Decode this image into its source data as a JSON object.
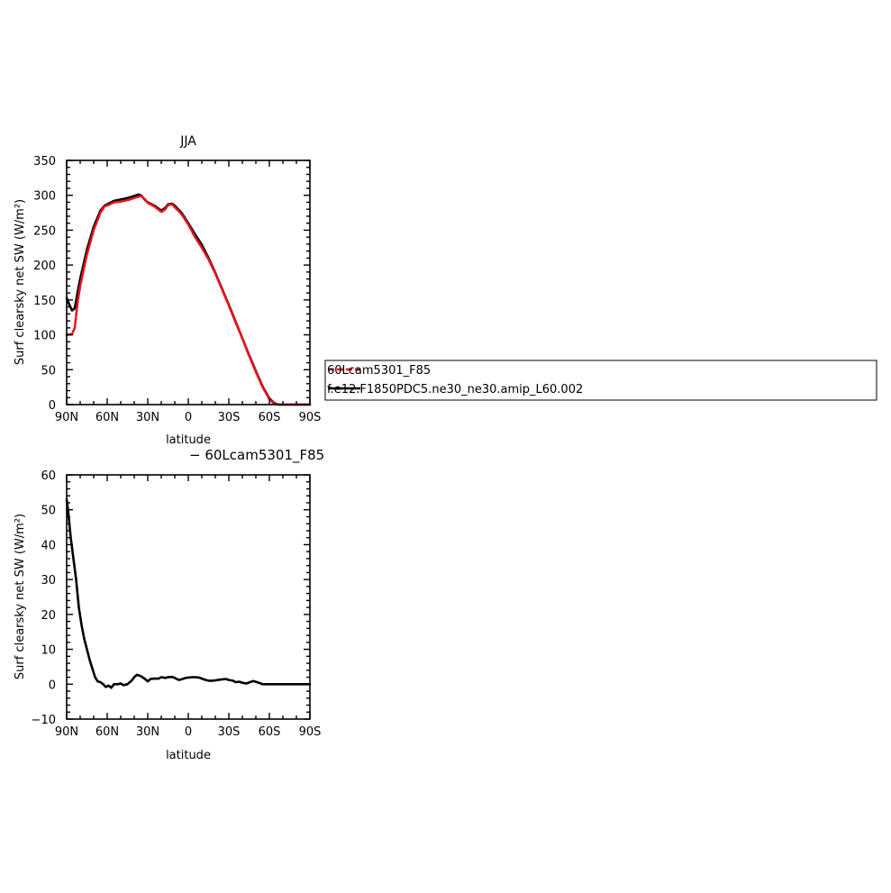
{
  "chart_data": [
    {
      "type": "line",
      "title": "JJA",
      "xlabel": "latitude",
      "ylabel": "Surf clearsky net SW (W/m²)",
      "xlim": [
        90,
        -90
      ],
      "ylim": [
        0,
        350
      ],
      "xticks": [
        90,
        60,
        30,
        0,
        -30,
        -60,
        -90
      ],
      "xtick_labels": [
        "90N",
        "60N",
        "30N",
        "0",
        "30S",
        "60S",
        "90S"
      ],
      "yticks": [
        0,
        50,
        100,
        150,
        200,
        250,
        300,
        350
      ],
      "ytick_labels": [
        "0",
        "50",
        "100",
        "150",
        "200",
        "250",
        "300",
        "350"
      ],
      "grid": false,
      "series": [
        {
          "name": "60Lcam5301_F85",
          "color": "#e8141b",
          "style": "dashed",
          "x": [
            90,
            86,
            84,
            82,
            80,
            75,
            70,
            65,
            62,
            58,
            55,
            50,
            45,
            40,
            37,
            35,
            32,
            30,
            25,
            20,
            17,
            15,
            12,
            10,
            5,
            0,
            -5,
            -10,
            -15,
            -20,
            -25,
            -30,
            -35,
            -40,
            -45,
            -50,
            -55,
            -60,
            -63,
            -65,
            -67,
            -70,
            -75,
            -80,
            -85,
            -90
          ],
          "y": [
            100,
            101,
            110,
            145,
            170,
            215,
            250,
            275,
            284,
            287,
            290,
            291,
            293,
            296,
            298,
            299,
            294,
            289,
            284,
            276,
            280,
            286,
            287,
            283,
            273,
            258,
            240,
            225,
            208,
            188,
            165,
            142,
            118,
            95,
            70,
            47,
            25,
            8,
            2,
            0.5,
            0,
            0,
            0,
            0,
            0,
            0
          ]
        },
        {
          "name": "f.e12.F1850PDC5.ne30_ne30.amip_L60.002",
          "color": "#000000",
          "style": "solid",
          "x": [
            90,
            88,
            86,
            84,
            82,
            80,
            75,
            70,
            65,
            62,
            58,
            55,
            50,
            45,
            40,
            37,
            35,
            32,
            30,
            25,
            20,
            17,
            15,
            12,
            10,
            5,
            0,
            -5,
            -10,
            -15,
            -20,
            -25,
            -30,
            -35,
            -40,
            -45,
            -50,
            -55,
            -60,
            -63,
            -65,
            -67,
            -70,
            -75,
            -80,
            -85,
            -90
          ],
          "y": [
            153,
            143,
            135,
            138,
            160,
            180,
            222,
            255,
            278,
            285,
            289,
            292,
            294,
            296,
            299,
            301,
            300,
            293,
            290,
            285,
            278,
            282,
            287,
            288,
            285,
            275,
            260,
            244,
            229,
            210,
            189,
            166,
            143,
            119,
            95,
            71,
            48,
            26,
            9,
            3,
            1,
            0,
            0,
            0,
            0,
            0,
            0
          ]
        }
      ],
      "legend": "right, framed"
    },
    {
      "type": "line",
      "title": "− 60Lcam5301_F85",
      "xlabel": "latitude",
      "ylabel": "Surf clearsky net SW (W/m²)",
      "xlim": [
        90,
        -90
      ],
      "ylim": [
        -10,
        60
      ],
      "xticks": [
        90,
        60,
        30,
        0,
        -30,
        -60,
        -90
      ],
      "xtick_labels": [
        "90N",
        "60N",
        "30N",
        "0",
        "30S",
        "60S",
        "90S"
      ],
      "yticks": [
        -10,
        0,
        10,
        20,
        30,
        40,
        50,
        60
      ],
      "ytick_labels": [
        "−10",
        "0",
        "10",
        "20",
        "30",
        "40",
        "50",
        "60"
      ],
      "grid": false,
      "series": [
        {
          "color": "#000000",
          "style": "solid",
          "x": [
            90,
            89,
            87,
            85,
            83,
            81,
            79,
            77,
            75,
            73,
            71,
            69,
            67,
            65,
            63,
            61,
            59,
            57,
            55,
            52,
            50,
            48,
            45,
            42,
            40,
            38,
            35,
            32,
            30,
            28,
            25,
            22,
            20,
            17,
            15,
            12,
            10,
            7,
            5,
            2,
            0,
            -3,
            -5,
            -8,
            -10,
            -13,
            -15,
            -18,
            -20,
            -23,
            -25,
            -28,
            -30,
            -33,
            -35,
            -38,
            -40,
            -43,
            -45,
            -48,
            -50,
            -53,
            -55,
            -58,
            -60,
            -62,
            -64,
            -66,
            -70,
            -75,
            -80,
            -85,
            -90
          ],
          "y": [
            53,
            50,
            42,
            36,
            30,
            22,
            17,
            13,
            10,
            7,
            4.5,
            2,
            0.8,
            0.6,
            0,
            -0.8,
            -0.4,
            -1,
            0,
            0,
            0.2,
            -0.3,
            0,
            1,
            2,
            2.7,
            2.3,
            1.5,
            0.8,
            1.5,
            1.6,
            1.6,
            2.0,
            1.8,
            2.0,
            2.1,
            1.8,
            1.2,
            1.4,
            1.8,
            1.9,
            2.0,
            2.0,
            1.9,
            1.6,
            1.2,
            1.0,
            1.0,
            1.1,
            1.3,
            1.4,
            1.5,
            1.2,
            1.0,
            0.6,
            0.7,
            0.4,
            0.2,
            0.5,
            0.9,
            0.7,
            0.3,
            0,
            0,
            0,
            0,
            0,
            0,
            0,
            0,
            0,
            0,
            0
          ]
        }
      ]
    }
  ]
}
